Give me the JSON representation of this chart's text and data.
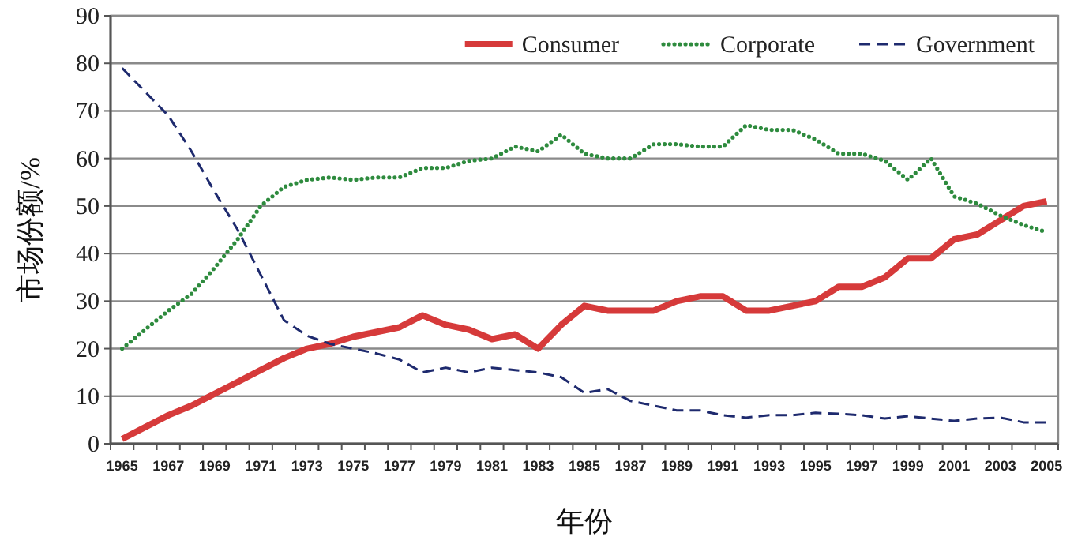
{
  "chart_data": {
    "type": "line",
    "xlabel": "年份",
    "ylabel": "市场份额/%",
    "categories": [
      "1965",
      null,
      "1967",
      null,
      "1969",
      null,
      "1971",
      null,
      "1973",
      null,
      "1975",
      null,
      "1977",
      null,
      "1979",
      null,
      "1981",
      null,
      "1983",
      null,
      "1985",
      null,
      "1987",
      null,
      "1989",
      null,
      "1991",
      null,
      "1993",
      null,
      "1995",
      null,
      "1997",
      null,
      "1999",
      null,
      "2001",
      null,
      "2003",
      null,
      "2005"
    ],
    "series": [
      {
        "name": "Consumer",
        "color": "#d63a3a",
        "line_style": "solid",
        "values": [
          1,
          3.5,
          6,
          8,
          10.5,
          13,
          15.5,
          18,
          20,
          21,
          22.5,
          23.5,
          24.5,
          27,
          25,
          24,
          22,
          23,
          20,
          25,
          29,
          28,
          28,
          28,
          30,
          31,
          31,
          28,
          28,
          29,
          30,
          33,
          33,
          35,
          39,
          39,
          43,
          44,
          47,
          50,
          51
        ]
      },
      {
        "name": "Corporate",
        "color": "#2e8b3e",
        "line_style": "dotted",
        "values": [
          20,
          24,
          28,
          31.5,
          37,
          43,
          50,
          54,
          55.5,
          56,
          55.5,
          56,
          56,
          58,
          58,
          59.5,
          60,
          62.5,
          61.5,
          65,
          61,
          60,
          60,
          63,
          63,
          62.5,
          62.5,
          67,
          66,
          66,
          64,
          61,
          61,
          59.5,
          55.5,
          60,
          52,
          50.5,
          48,
          46,
          44.5
        ]
      },
      {
        "name": "Government",
        "color": "#1e2a6e",
        "line_style": "dashed",
        "values": [
          79,
          74,
          69,
          61.5,
          53,
          45,
          35.5,
          26,
          22.7,
          21,
          20,
          19,
          17.7,
          15,
          16,
          15,
          16,
          15.5,
          15,
          14,
          10.7,
          11.5,
          9,
          8,
          7,
          7,
          6,
          5.5,
          6,
          6,
          6.5,
          6.3,
          6,
          5.3,
          5.8,
          5.3,
          4.8,
          5.3,
          5.5,
          4.5,
          4.5
        ]
      }
    ],
    "ylim": [
      0,
      90
    ],
    "yticks": [
      0,
      10,
      20,
      30,
      40,
      50,
      60,
      70,
      80,
      90
    ],
    "grid": "y",
    "legend": "top right"
  }
}
